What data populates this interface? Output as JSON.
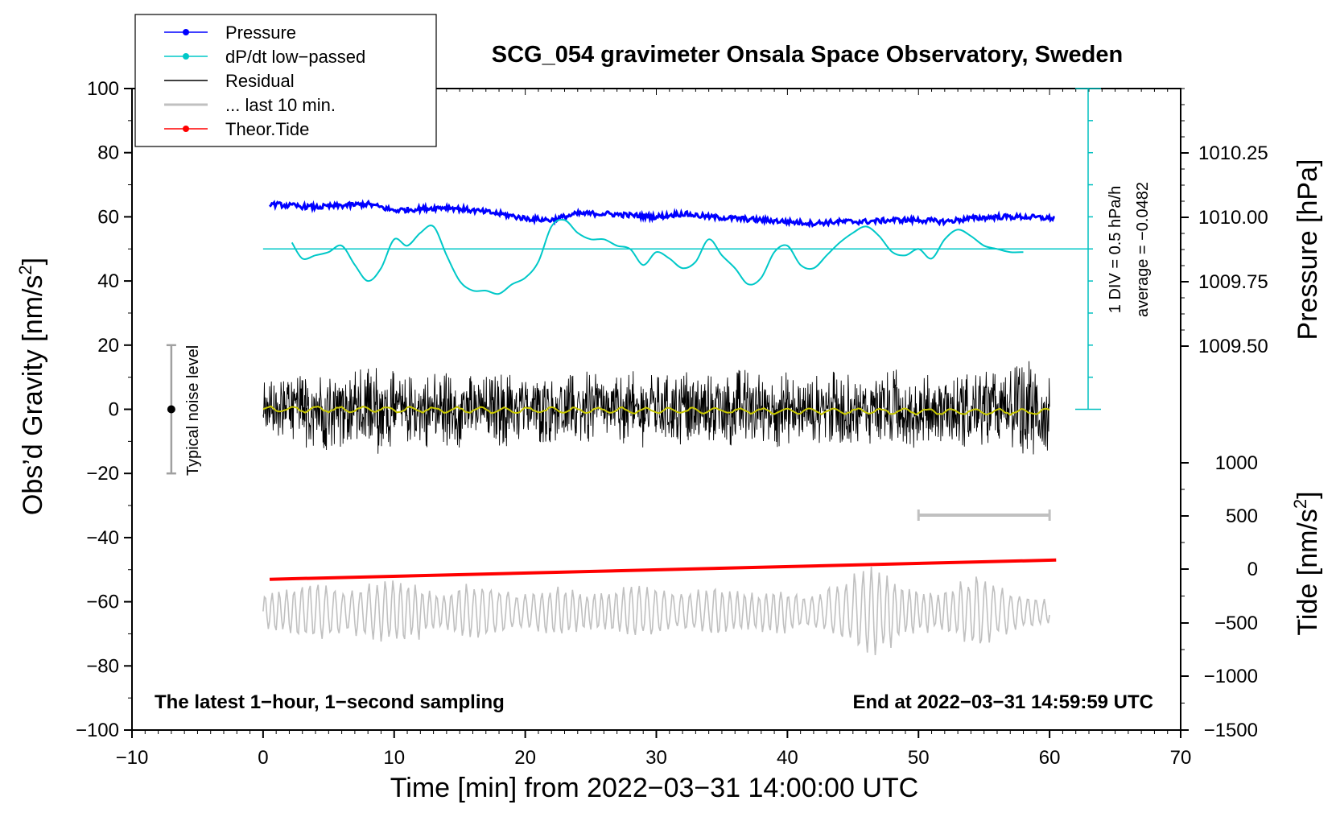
{
  "chart_data": {
    "type": "line",
    "title": "SCG_054 gravimeter Onsala Space Observatory, Sweden",
    "xlabel": "Time [min] from 2022−03−31 14:00:00 UTC",
    "ylabel_left": "Obs’d Gravity [nm/s",
    "ylabel_left_sup": "2",
    "ylabel_left_tail": "]",
    "ylabel_right_pressure": "Pressure [hPa]",
    "ylabel_right_tide": "Tide [nm/s",
    "ylabel_right_tide_sup": "2",
    "ylabel_right_tide_tail": "]",
    "xlim": [
      -10,
      70
    ],
    "ylim_left": [
      -100,
      100
    ],
    "x_ticks": [
      "−10",
      "0",
      "10",
      "20",
      "30",
      "40",
      "50",
      "60",
      "70"
    ],
    "y_ticks_left": [
      "−100",
      "−80",
      "−60",
      "−40",
      "−20",
      "0",
      "20",
      "40",
      "60",
      "80",
      "100"
    ],
    "pressure_ticks": [
      "1009.50",
      "1009.75",
      "1010.00",
      "1010.25"
    ],
    "tide_ticks": [
      "−1500",
      "−1000",
      "−500",
      "0",
      "500",
      "1000"
    ],
    "legend": [
      {
        "label": "Pressure",
        "color": "#0000ff",
        "marker": true
      },
      {
        "label": "dP/dt low−passed",
        "color": "#00c8c8",
        "marker": true
      },
      {
        "label": "Residual",
        "color": "#000000",
        "marker": false
      },
      {
        "label": "... last 10 min.",
        "color": "#c0c0c0",
        "marker": false
      },
      {
        "label": "Theor.Tide",
        "color": "#ff0000",
        "marker": true
      }
    ],
    "footer_left": "The latest 1−hour, 1−second sampling",
    "footer_right": "End at 2022−03−31 14:59:59 UTC",
    "noise_label": "Typical noise level",
    "noise_bar": {
      "x": -7,
      "y": 0,
      "low": -20,
      "high": 20
    },
    "dpdt_scale_text": "1 DIV = 0.5 hPa/h",
    "dpdt_average_text": "average = −0.0482",
    "dpdt_baseline": 50,
    "ten_min_span": [
      50,
      60
    ],
    "ten_min_level": -33,
    "series": [
      {
        "name": "Pressure",
        "color": "#0000ff",
        "x": [
          0.5,
          2,
          4,
          6,
          8,
          10,
          12,
          14,
          16,
          18,
          20,
          22,
          24,
          26,
          28,
          30,
          32,
          34,
          36,
          38,
          40,
          42,
          44,
          46,
          48,
          50,
          52,
          54,
          56,
          58,
          60.4
        ],
        "values": [
          64,
          63.5,
          63,
          63.5,
          64,
          62,
          62.5,
          63,
          62,
          61,
          59.5,
          59,
          61,
          61,
          60.5,
          60,
          61,
          60,
          59.5,
          59,
          58.5,
          58,
          58.5,
          58.5,
          59,
          59,
          58.5,
          59.5,
          60,
          60,
          59.5
        ]
      },
      {
        "name": "dP/dt low−passed",
        "color": "#00c8c8",
        "x": [
          2.2,
          3,
          4,
          5,
          6,
          7,
          8,
          9,
          10,
          11,
          12,
          13,
          14,
          15,
          16,
          17,
          18,
          19,
          20,
          21,
          22,
          23,
          24,
          25,
          26,
          27,
          28,
          29,
          30,
          31,
          32,
          33,
          34,
          35,
          36,
          37,
          38,
          39,
          40,
          41,
          42,
          43,
          44,
          45,
          46,
          47,
          48,
          49,
          50,
          51,
          52,
          53,
          54,
          55,
          56,
          57,
          58
        ],
        "values": [
          52,
          47,
          48,
          49,
          51,
          45,
          40,
          44,
          53,
          51,
          55,
          57,
          48,
          40,
          37,
          37,
          36,
          39,
          41,
          46,
          57,
          59,
          55,
          53,
          53,
          51,
          50,
          45,
          49,
          47,
          44,
          46,
          53,
          48,
          44,
          39,
          41,
          49,
          51,
          45,
          44,
          48,
          52,
          55,
          57,
          54,
          49,
          48,
          50,
          47,
          53,
          56,
          54,
          51,
          50,
          49,
          49
        ]
      },
      {
        "name": "Theor.Tide",
        "color": "#ff0000",
        "x": [
          0.5,
          60.5
        ],
        "values": [
          -53,
          -47
        ]
      }
    ],
    "residual": {
      "name": "Residual",
      "color": "#000000",
      "smooth_color": "#c8c800",
      "x_start": 0,
      "x_end": 60,
      "amplitude_envelope": [
        9,
        10,
        11,
        12,
        13,
        12,
        11,
        13,
        15,
        12,
        10,
        11,
        12,
        13,
        12,
        11,
        10,
        11,
        12,
        11,
        10,
        11,
        10,
        11,
        12,
        11,
        10,
        11,
        12,
        11,
        11,
        12,
        13,
        12,
        11,
        12,
        13,
        12,
        11,
        12,
        11,
        10,
        11,
        12,
        11,
        10,
        11,
        12,
        13,
        12,
        11,
        10,
        11,
        12,
        13,
        12,
        11,
        14,
        17,
        15,
        12
      ]
    },
    "last_10_min": {
      "name": "... last 10 min.",
      "color": "#c0c0c0",
      "x_start": 0,
      "x_end": 60,
      "center": -63,
      "amplitude_envelope": [
        6,
        7,
        8,
        9,
        9,
        8,
        7,
        8,
        9,
        10,
        11,
        9,
        7,
        6,
        7,
        9,
        9,
        8,
        7,
        6,
        6,
        7,
        8,
        7,
        6,
        6,
        7,
        8,
        9,
        8,
        7,
        6,
        6,
        7,
        8,
        7,
        7,
        6,
        7,
        8,
        6,
        5,
        6,
        8,
        10,
        13,
        15,
        13,
        10,
        8,
        7,
        6,
        8,
        10,
        12,
        10,
        8,
        6,
        5,
        4,
        4
      ]
    }
  }
}
